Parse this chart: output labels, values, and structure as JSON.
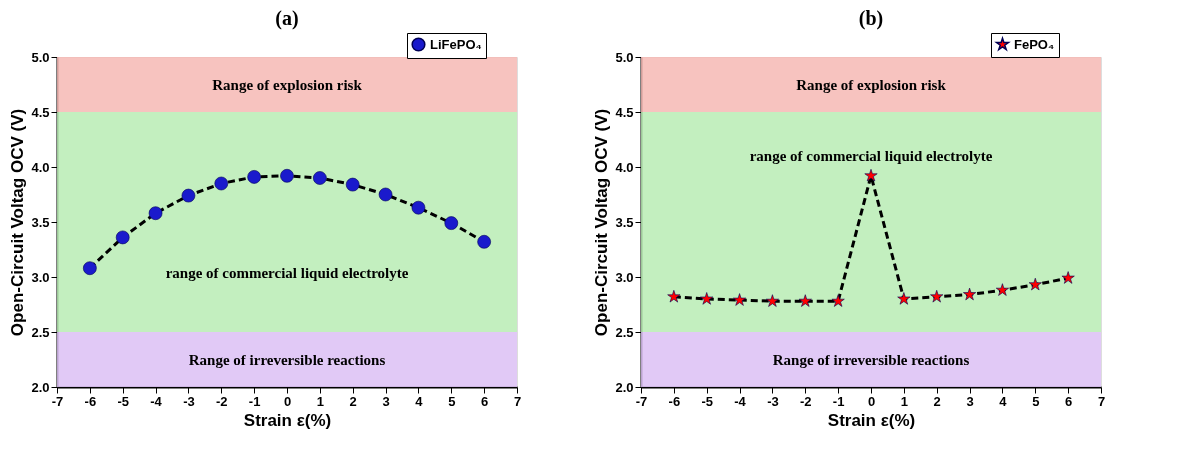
{
  "chart_data": [
    {
      "type": "line",
      "title": "(a)",
      "xlabel": "Strain ε(%)",
      "ylabel": "Open-Circuit Voltag OCV (V)",
      "x": [
        -6,
        -5,
        -4,
        -3,
        -2,
        -1,
        0,
        1,
        2,
        3,
        4,
        5,
        6
      ],
      "series": [
        {
          "name": "LiFePO₄",
          "color": "#1a1acc",
          "values": [
            3.08,
            3.36,
            3.58,
            3.74,
            3.85,
            3.91,
            3.92,
            3.9,
            3.84,
            3.75,
            3.63,
            3.49,
            3.32
          ]
        }
      ],
      "xlim": [
        -7,
        7
      ],
      "xticks": [
        -7,
        -6,
        -5,
        -4,
        -3,
        -2,
        -1,
        0,
        1,
        2,
        3,
        4,
        5,
        6,
        7
      ],
      "ylim": [
        2,
        5
      ],
      "yticks": [
        {
          "value": 2,
          "label": "2.0"
        },
        2.5,
        {
          "value": 3,
          "label": "3.0"
        },
        3.5,
        {
          "value": 4,
          "label": "4.0"
        },
        4.5,
        {
          "value": 5,
          "label": "5.0"
        }
      ],
      "bands": [
        {
          "axis": "y",
          "from": 4.5,
          "to": 5,
          "label": "Range of explosion risk",
          "color": "#f6b9b4"
        },
        {
          "axis": "y",
          "from": 2.5,
          "to": 4.5,
          "label": "range of commercial liquid electrolyte",
          "color": "#b8ecb4"
        },
        {
          "axis": "y",
          "from": 2,
          "to": 2.5,
          "label": "Range of irreversible reactions",
          "color": "#dcc0f4"
        }
      ],
      "marker": "circle",
      "line_style": "dashed",
      "grid": false,
      "legend": "top right"
    },
    {
      "type": "line",
      "title": "(b)",
      "xlabel": "Strain ε(%)",
      "ylabel": "Open-Circuit Voltag OCV (V)",
      "x": [
        -6,
        -5,
        -4,
        -3,
        -2,
        -1,
        0,
        1,
        2,
        3,
        4,
        5,
        6
      ],
      "series": [
        {
          "name": "FePO₄",
          "color": "#ff0000",
          "values": [
            2.82,
            2.8,
            2.79,
            2.78,
            2.78,
            2.78,
            3.92,
            2.8,
            2.82,
            2.84,
            2.88,
            2.93,
            2.99
          ]
        }
      ],
      "xlim": [
        -7,
        7
      ],
      "xticks": [
        -7,
        -6,
        -5,
        -4,
        -3,
        -2,
        -1,
        0,
        1,
        2,
        3,
        4,
        5,
        6,
        7
      ],
      "ylim": [
        2,
        5
      ],
      "yticks": [
        {
          "value": 2,
          "label": "2.0"
        },
        2.5,
        {
          "value": 3,
          "label": "3.0"
        },
        3.5,
        {
          "value": 4,
          "label": "4.0"
        },
        4.5,
        {
          "value": 5,
          "label": "5.0"
        }
      ],
      "bands": [
        {
          "axis": "y",
          "from": 4.5,
          "to": 5,
          "label": "Range of explosion risk",
          "color": "#f6b9b4"
        },
        {
          "axis": "y",
          "from": 2.5,
          "to": 4.5,
          "label": "range of commercial liquid electrolyte",
          "color": "#b8ecb4"
        },
        {
          "axis": "y",
          "from": 2,
          "to": 2.5,
          "label": "Range of irreversible reactions",
          "color": "#dcc0f4"
        }
      ],
      "marker": "star",
      "line_style": "dashed",
      "grid": false,
      "legend": "top right"
    }
  ]
}
